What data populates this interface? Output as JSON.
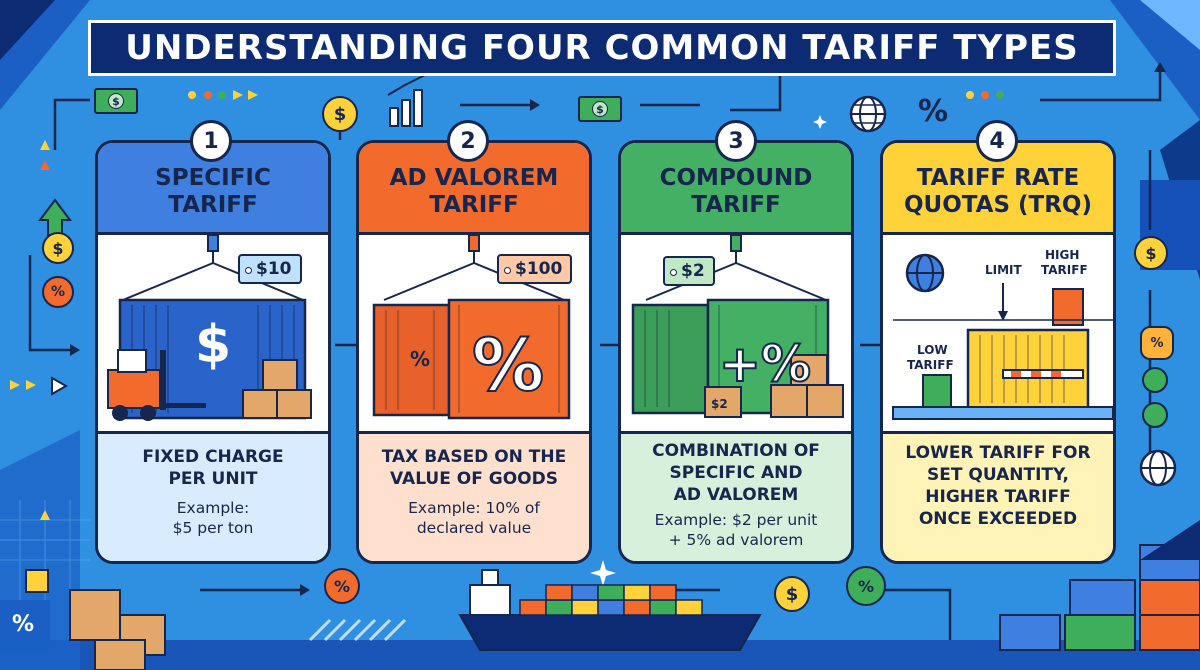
{
  "title": "UNDERSTANDING FOUR COMMON TARIFF TYPES",
  "colors": {
    "background": "#2f8fe0",
    "title_bar": "#0d2b73",
    "card1": "#3f7fe0",
    "card2": "#f26a2c",
    "card3": "#44b063",
    "card4": "#ffd23a"
  },
  "cards": [
    {
      "number": "1",
      "title_line1": "SPECIFIC",
      "title_line2": "TARIFF",
      "tag": "$10",
      "container_symbol": "$",
      "description": "FIXED CHARGE\nPER UNIT",
      "example": "Example:\n$5 per ton"
    },
    {
      "number": "2",
      "title_line1": "AD VALOREM",
      "title_line2": "TARIFF",
      "tag": "$100",
      "container_symbol": "%",
      "container_small_symbol": "%",
      "description": "TAX BASED ON THE\nVALUE OF GOODS",
      "example": "Example: 10% of\ndeclared value"
    },
    {
      "number": "3",
      "title_line1": "COMPOUND",
      "title_line2": "TARIFF",
      "tag": "$2",
      "container_symbol": "+%",
      "box_label": "$2",
      "description": "COMBINATION OF\nSPECIFIC AND\nAD VALOREM",
      "example": "Example: $2 per unit\n+ 5% ad valorem"
    },
    {
      "number": "4",
      "title_line1": "TARIFF RATE",
      "title_line2": "QUOTAS (TRQ)",
      "limit_label": "LIMIT",
      "high_label_1": "HIGH",
      "high_label_2": "TARIFF",
      "low_label_1": "LOW",
      "low_label_2": "TARIFF",
      "description": "LOWER TARIFF FOR\nSET QUANTITY,\nHIGHER TARIFF\nONCE EXCEEDED"
    }
  ],
  "decor": {
    "dollar": "$",
    "percent": "%",
    "icons": [
      "dollar-bill-icon",
      "dollar-coin-icon",
      "percent-coin-icon",
      "globe-icon",
      "bar-chart-icon",
      "gear-icon",
      "ship-icon",
      "warehouse-box-icon"
    ]
  }
}
